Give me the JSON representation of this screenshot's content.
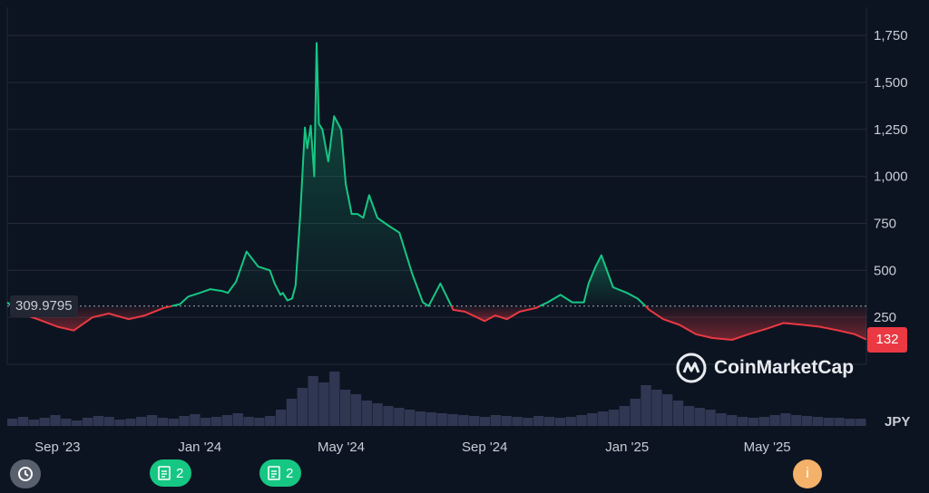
{
  "chart_data": {
    "type": "area",
    "currency": "JPY",
    "baseline_value": "309.9795",
    "current_value": "132",
    "ylim": [
      0,
      1900
    ],
    "y_ticks": [
      "250",
      "500",
      "750",
      "1,000",
      "1,250",
      "1,500",
      "1,750"
    ],
    "x_ticks": [
      "Sep '23",
      "Jan '24",
      "May '24",
      "Sep '24",
      "Jan '25",
      "May '25"
    ],
    "x_tick_dates": [
      "2023-09-01",
      "2024-01-01",
      "2024-05-01",
      "2024-09-01",
      "2025-01-01",
      "2025-05-01"
    ],
    "series": [
      {
        "x": [
          "2023-07-20",
          "2023-08-01",
          "2023-08-15",
          "2023-09-01",
          "2023-09-15",
          "2023-10-01",
          "2023-10-15",
          "2023-11-01",
          "2023-11-15",
          "2023-12-01",
          "2023-12-15",
          "2023-12-22",
          "2024-01-01",
          "2024-01-10",
          "2024-01-20",
          "2024-01-25",
          "2024-02-01",
          "2024-02-10",
          "2024-02-20",
          "2024-03-01",
          "2024-03-05",
          "2024-03-10",
          "2024-03-12",
          "2024-03-16",
          "2024-03-20",
          "2024-03-23",
          "2024-03-27",
          "2024-03-31",
          "2024-04-02",
          "2024-04-05",
          "2024-04-08",
          "2024-04-10",
          "2024-04-12",
          "2024-04-15",
          "2024-04-20",
          "2024-04-25",
          "2024-05-01",
          "2024-05-05",
          "2024-05-10",
          "2024-05-15",
          "2024-05-20",
          "2024-05-25",
          "2024-06-01",
          "2024-06-10",
          "2024-06-20",
          "2024-07-01",
          "2024-07-10",
          "2024-07-15",
          "2024-07-25",
          "2024-08-05",
          "2024-08-15",
          "2024-09-01",
          "2024-09-10",
          "2024-09-20",
          "2024-10-01",
          "2024-10-15",
          "2024-10-25",
          "2024-11-05",
          "2024-11-15",
          "2024-11-25",
          "2024-11-29",
          "2024-12-05",
          "2024-12-10",
          "2024-12-20",
          "2025-01-01",
          "2025-01-10",
          "2025-01-20",
          "2025-02-01",
          "2025-02-15",
          "2025-03-01",
          "2025-03-15",
          "2025-04-01",
          "2025-04-15",
          "2025-05-01",
          "2025-05-15",
          "2025-06-01",
          "2025-06-15",
          "2025-07-01",
          "2025-07-15",
          "2025-07-25"
        ],
        "y": [
          330,
          270,
          240,
          200,
          180,
          250,
          270,
          240,
          260,
          300,
          320,
          360,
          380,
          400,
          390,
          380,
          440,
          600,
          520,
          500,
          430,
          370,
          380,
          340,
          350,
          420,
          800,
          1260,
          1150,
          1270,
          1000,
          1710,
          1280,
          1250,
          1080,
          1320,
          1250,
          960,
          800,
          800,
          780,
          900,
          780,
          740,
          700,
          480,
          330,
          310,
          430,
          290,
          280,
          230,
          260,
          240,
          280,
          300,
          330,
          370,
          330,
          330,
          430,
          520,
          580,
          410,
          380,
          350,
          290,
          240,
          210,
          160,
          140,
          130,
          160,
          190,
          220,
          210,
          200,
          180,
          160,
          132
        ]
      }
    ]
  },
  "volume_bars": [
    8,
    10,
    7,
    9,
    12,
    8,
    6,
    9,
    11,
    10,
    7,
    8,
    10,
    12,
    9,
    8,
    11,
    13,
    9,
    10,
    12,
    14,
    10,
    9,
    11,
    18,
    30,
    42,
    55,
    48,
    60,
    40,
    35,
    28,
    25,
    22,
    20,
    18,
    16,
    15,
    14,
    13,
    12,
    11,
    10,
    12,
    11,
    10,
    9,
    11,
    10,
    9,
    10,
    12,
    14,
    16,
    18,
    22,
    30,
    45,
    40,
    35,
    28,
    22,
    20,
    18,
    14,
    12,
    10,
    9,
    10,
    12,
    14,
    12,
    11,
    10,
    9,
    9,
    8,
    8
  ],
  "annotations": {
    "notes": [
      {
        "count": "2",
        "date": "2024-01-05"
      },
      {
        "count": "2",
        "date": "2024-04-05"
      }
    ],
    "info_label": "i"
  },
  "watermark": "CoinMarketCap",
  "colors": {
    "background": "#0d1421",
    "up": "#16c784",
    "down": "#ea3943",
    "grid": "#2a2f3a",
    "volume": "#3b4363"
  },
  "icons": {
    "history": "history-icon",
    "note": "document-icon",
    "info": "info-icon",
    "logo": "coinmarketcap-logo-icon"
  }
}
